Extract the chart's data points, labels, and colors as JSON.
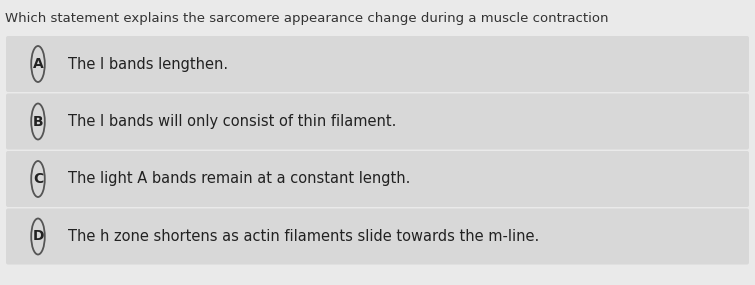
{
  "question": "Which statement explains the sarcomere appearance change during a muscle contraction",
  "options": [
    {
      "label": "A",
      "text": "The I bands lengthen."
    },
    {
      "label": "B",
      "text": "The I bands will only consist of thin filament."
    },
    {
      "label": "C",
      "text": "The light A bands remain at a constant length."
    },
    {
      "label": "D",
      "text": "The h zone shortens as actin filaments slide towards the m-line."
    }
  ],
  "bg_color": "#eaeaea",
  "option_bg_color": "#d8d8d8",
  "question_text_color": "#333333",
  "option_text_color": "#222222",
  "circle_edge_color": "#555555",
  "circle_face_color": "#d8d8d8",
  "question_fontsize": 9.5,
  "option_fontsize": 10.5,
  "label_fontsize": 10.0
}
